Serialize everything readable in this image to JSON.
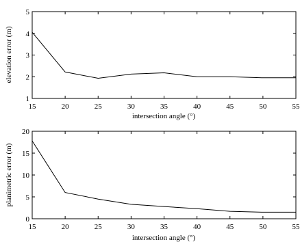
{
  "chart_data": [
    {
      "type": "line",
      "xlabel": "intersection angle (°)",
      "ylabel": "elevation error (m)",
      "xlim": [
        15,
        55
      ],
      "ylim": [
        1,
        5
      ],
      "xticks": [
        "15",
        "20",
        "25",
        "30",
        "35",
        "40",
        "45",
        "50",
        "55"
      ],
      "yticks": [
        "1",
        "2",
        "3",
        "4",
        "5"
      ],
      "grid": false,
      "series": [
        {
          "x": [
            15,
            20,
            25,
            30,
            35,
            40,
            45,
            50,
            55
          ],
          "y": [
            4.05,
            2.22,
            1.93,
            2.12,
            2.18,
            2.0,
            2.0,
            1.95,
            1.95
          ]
        }
      ]
    },
    {
      "type": "line",
      "xlabel": "intersection angle (°)",
      "ylabel": "planimetric error (m)",
      "xlim": [
        15,
        55
      ],
      "ylim": [
        0,
        20
      ],
      "xticks": [
        "15",
        "20",
        "25",
        "30",
        "35",
        "40",
        "45",
        "50",
        "55"
      ],
      "yticks": [
        "0",
        "5",
        "10",
        "15",
        "20"
      ],
      "grid": false,
      "series": [
        {
          "x": [
            15,
            20,
            25,
            30,
            35,
            40,
            45,
            50,
            55
          ],
          "y": [
            17.8,
            6.0,
            4.5,
            3.3,
            2.8,
            2.3,
            1.7,
            1.5,
            1.5
          ]
        }
      ]
    }
  ]
}
